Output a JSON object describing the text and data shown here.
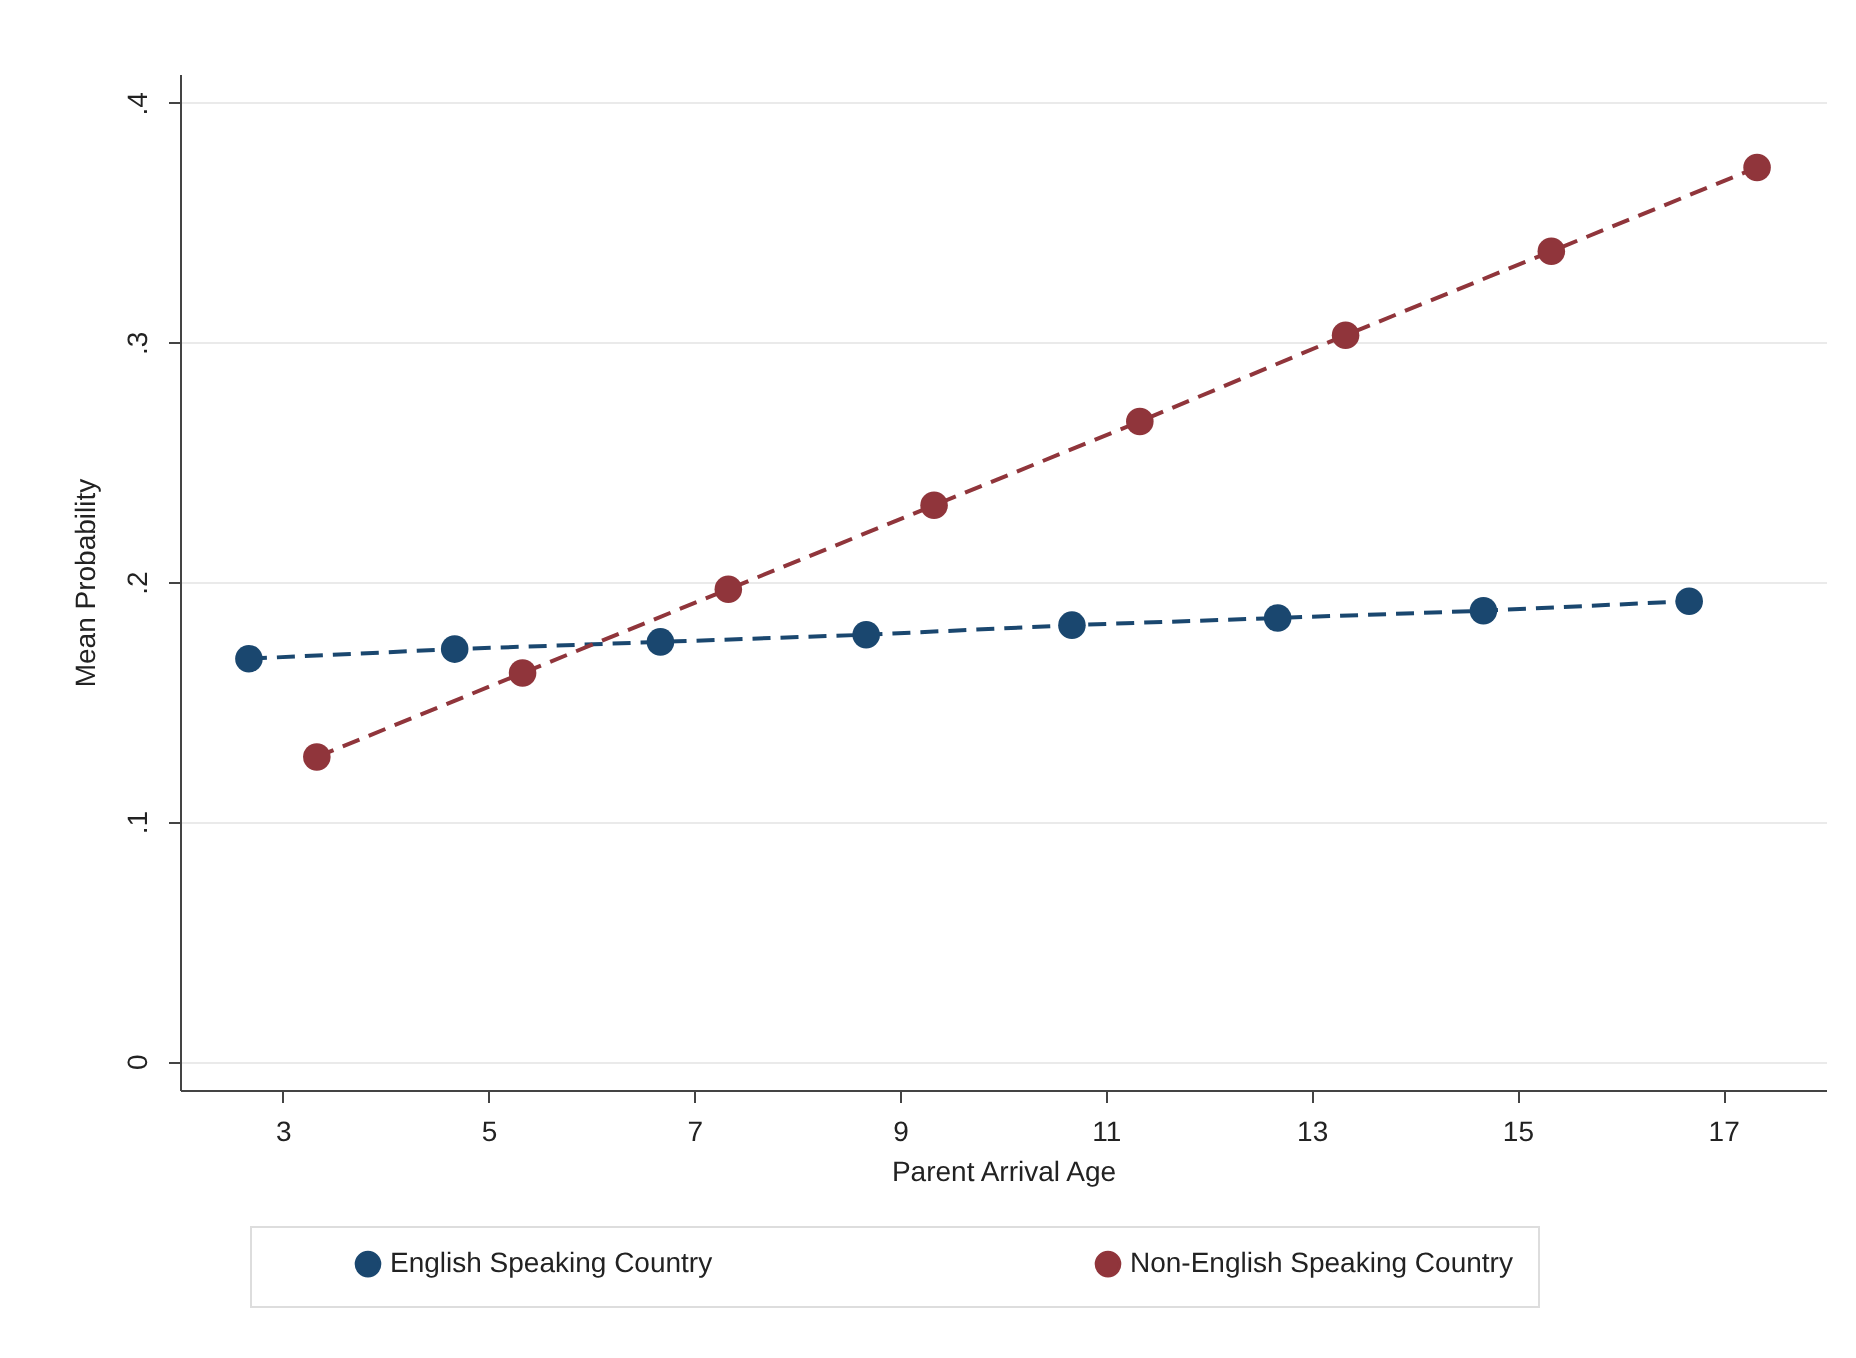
{
  "chart_data": {
    "type": "line",
    "xlabel": "Parent Arrival Age",
    "ylabel": "Mean Probability",
    "xlim": [
      2,
      18
    ],
    "xticks": [
      3,
      5,
      7,
      9,
      11,
      13,
      15,
      17
    ],
    "ylim": [
      -0.012,
      0.412
    ],
    "yticks": [
      {
        "value": 0,
        "label": "0"
      },
      {
        "value": 0.1,
        "label": ".1"
      },
      {
        "value": 0.2,
        "label": ".2"
      },
      {
        "value": 0.3,
        "label": ".3"
      },
      {
        "value": 0.4,
        "label": ".4"
      }
    ],
    "series": [
      {
        "name": "English Speaking Country",
        "color": "#1a476f",
        "x": [
          2.67,
          4.67,
          6.67,
          8.67,
          10.67,
          12.67,
          14.67,
          16.67
        ],
        "values": [
          0.168,
          0.172,
          0.175,
          0.178,
          0.182,
          0.185,
          0.188,
          0.192
        ]
      },
      {
        "name": "Non-English Speaking Country",
        "color": "#90353b",
        "x": [
          3.33,
          5.33,
          7.33,
          9.33,
          11.33,
          13.33,
          15.33,
          17.33
        ],
        "values": [
          0.127,
          0.162,
          0.197,
          0.232,
          0.267,
          0.303,
          0.338,
          0.373
        ]
      }
    ],
    "grid": "y",
    "legend": "bottom",
    "marker": "circle",
    "line_style": "dashed"
  }
}
